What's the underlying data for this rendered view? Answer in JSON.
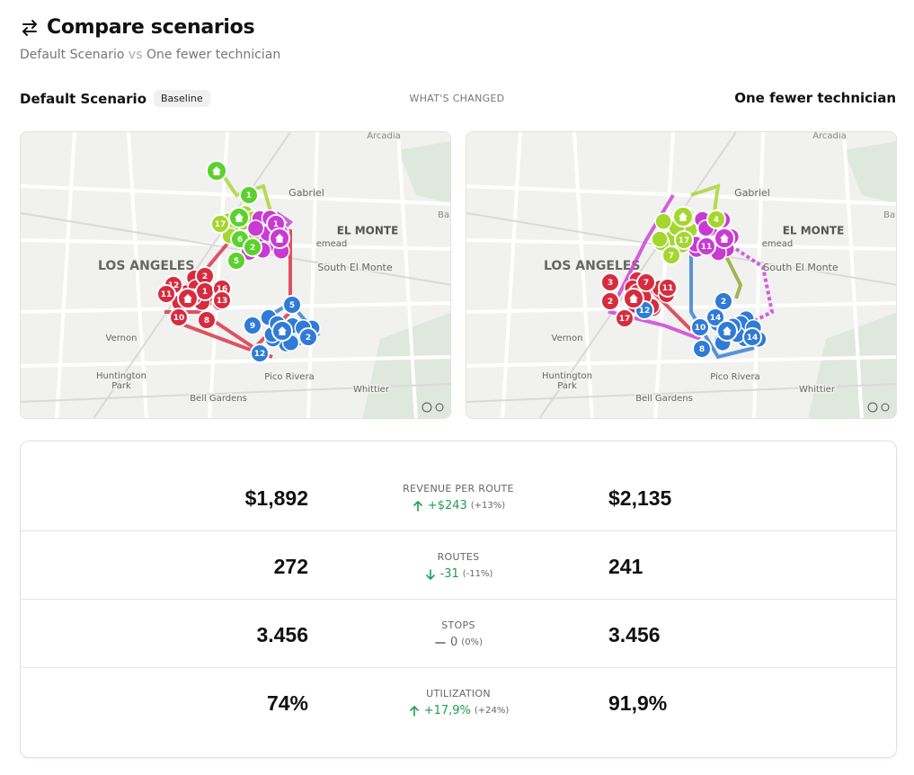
{
  "header": {
    "title": "Compare scenarios",
    "subtitle": {
      "left": "Default Scenario",
      "joiner": "vs",
      "right": "One fewer technician"
    }
  },
  "columns": {
    "left": {
      "name": "Default Scenario",
      "badge": "Baseline"
    },
    "center": "WHAT'S CHANGED",
    "right": {
      "name": "One fewer technician"
    }
  },
  "maps": [
    {
      "labels": [
        "Arcadia",
        "Gabriel",
        "Bal",
        "EL MONTE",
        "emead",
        "LOS ANGELES",
        "South El Monte",
        "Vernon",
        "Huntington",
        "Park",
        "Pico Rivera",
        "Bell Gardens",
        "Whittier"
      ],
      "markers": [
        "1",
        "17",
        "6",
        "2",
        "5",
        "1",
        "12",
        "2",
        "1",
        "16",
        "11",
        "13",
        "10",
        "8",
        "5",
        "9",
        "2",
        "12"
      ]
    },
    {
      "labels": [
        "Arcadia",
        "Gabriel",
        "Bal",
        "EL MONTE",
        "emead",
        "LOS ANGELES",
        "South El Monte",
        "Vernon",
        "Huntington",
        "Park",
        "Pico Rivera",
        "Bell Gardens",
        "Whittier"
      ],
      "markers": [
        "17",
        "4",
        "7",
        "11",
        "3",
        "7",
        "2",
        "11",
        "17",
        "12",
        "2",
        "10",
        "14",
        "14",
        "8"
      ]
    }
  ],
  "metrics": [
    {
      "label": "REVENUE PER ROUTE",
      "left": "$1,892",
      "right": "$2,135",
      "delta": "+$243",
      "pct": "(+13%)",
      "trend": "up"
    },
    {
      "label": "ROUTES",
      "left": "272",
      "right": "241",
      "delta": "-31",
      "pct": "(-11%)",
      "trend": "down"
    },
    {
      "label": "STOPS",
      "left": "3.456",
      "right": "3.456",
      "delta": "0",
      "pct": "(0%)",
      "trend": "flat"
    },
    {
      "label": "UTILIZATION",
      "left": "74%",
      "right": "91,9%",
      "delta": "+17,9%",
      "pct": "(+24%)",
      "trend": "up"
    }
  ]
}
